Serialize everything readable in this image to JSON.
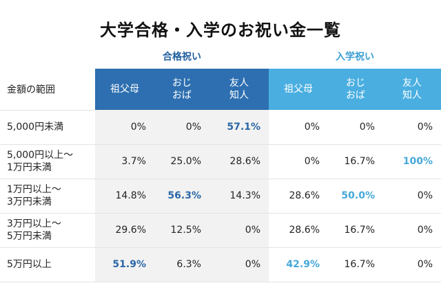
{
  "title": "大学合格・入学のお祝い金一覧",
  "chart_data": {
    "type": "table",
    "title": "大学合格・入学のお祝い金一覧",
    "row_header": "金額の範囲",
    "groups": [
      {
        "name": "合格祝い",
        "columns": [
          "祖父母",
          "おじ\nおば",
          "友人\n知人"
        ]
      },
      {
        "name": "入学祝い",
        "columns": [
          "祖父母",
          "おじ\nおば",
          "友人\n知人"
        ]
      }
    ],
    "rows": [
      {
        "label": "5,000円未満",
        "values": [
          "0%",
          "0%",
          "57.1%",
          "0%",
          "0%",
          "0%"
        ],
        "highlight": [
          2
        ]
      },
      {
        "label": "5,000円以上〜\n1万円未満",
        "values": [
          "3.7%",
          "25.0%",
          "28.6%",
          "0%",
          "16.7%",
          "100%"
        ],
        "highlight": [
          5
        ]
      },
      {
        "label": "1万円以上〜\n3万円未満",
        "values": [
          "14.8%",
          "56.3%",
          "14.3%",
          "28.6%",
          "50.0%",
          "0%"
        ],
        "highlight": [
          1,
          4
        ]
      },
      {
        "label": "3万円以上〜\n5万円未満",
        "values": [
          "29.6%",
          "12.5%",
          "0%",
          "28.6%",
          "16.7%",
          "0%"
        ],
        "highlight": []
      },
      {
        "label": "5万円以上",
        "values": [
          "51.9%",
          "6.3%",
          "0%",
          "42.9%",
          "16.7%",
          "0%"
        ],
        "highlight": [
          0,
          3
        ]
      }
    ],
    "colors": {
      "group_a_header": "#2d6fb0",
      "group_b_header": "#4aaee0",
      "group_a_highlight": "#2a67a6",
      "group_b_highlight": "#45a8da",
      "group_a_cell_bg": "#f2f2f2"
    }
  }
}
